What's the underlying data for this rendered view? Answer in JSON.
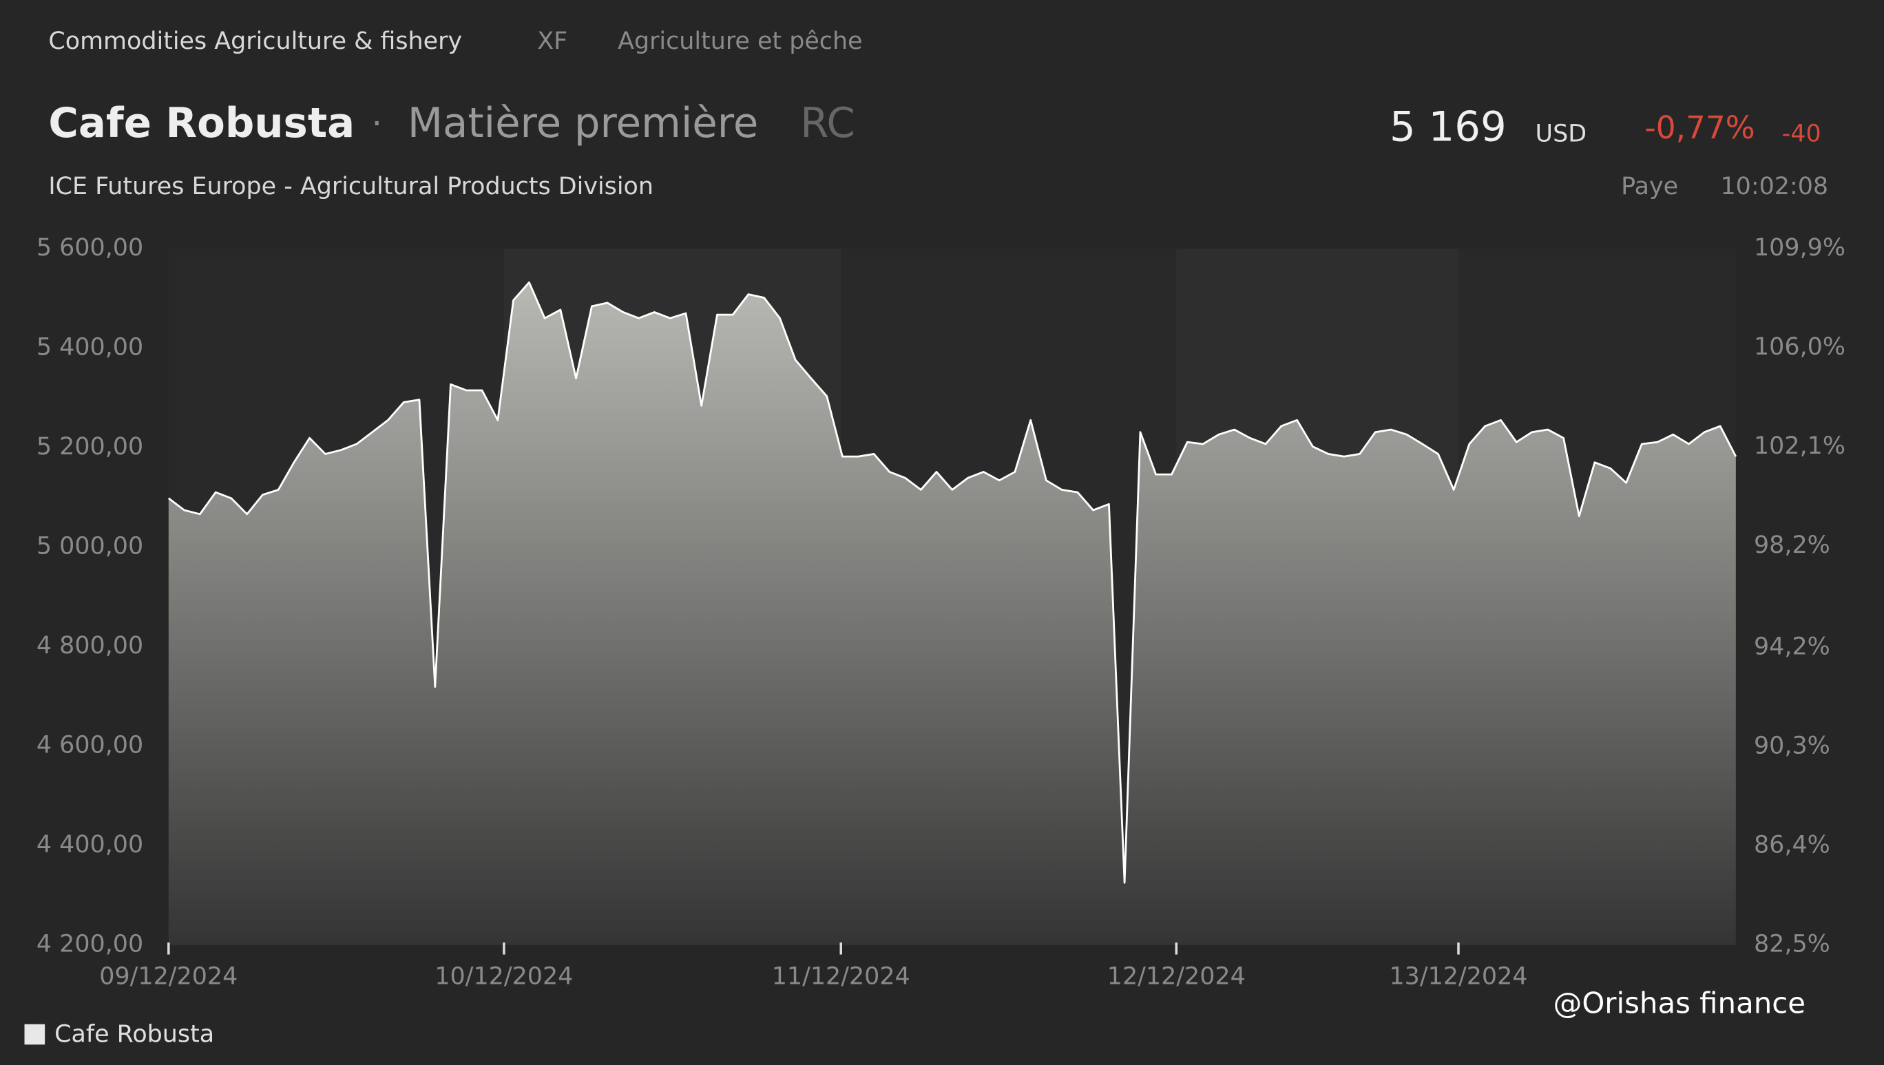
{
  "header": {
    "breadcrumb": [
      "Commodities Agriculture & fishery",
      "XF",
      "Agriculture et pêche"
    ],
    "name": "Cafe Robusta",
    "separator": "·",
    "kind": "Matière première",
    "code": "RC",
    "exchange": "ICE Futures Europe - Agricultural Products Division",
    "price": "5 169",
    "currency": "USD",
    "change_pct": "-0,77%",
    "change": "-40",
    "status": "Paye",
    "time": "10:02:08"
  },
  "watermark": "@Orishas finance",
  "chart_data": {
    "type": "area",
    "series": [
      {
        "name": "Cafe Robusta",
        "color": "#ffffff",
        "values": [
          5098,
          5074,
          5066,
          5110,
          5098,
          5066,
          5105,
          5115,
          5170,
          5219,
          5187,
          5195,
          5207,
          5231,
          5255,
          5291,
          5296,
          4719,
          5327,
          5315,
          5315,
          5255,
          5496,
          5532,
          5460,
          5477,
          5339,
          5484,
          5491,
          5472,
          5460,
          5472,
          5460,
          5470,
          5284,
          5467,
          5467,
          5508,
          5501,
          5460,
          5376,
          5339,
          5303,
          5182,
          5182,
          5187,
          5151,
          5139,
          5115,
          5151,
          5115,
          5139,
          5151,
          5134,
          5151,
          5255,
          5134,
          5115,
          5110,
          5074,
          5086,
          4325,
          5231,
          5146,
          5146,
          5211,
          5207,
          5226,
          5236,
          5219,
          5207,
          5243,
          5255,
          5202,
          5187,
          5182,
          5187,
          5231,
          5236,
          5226,
          5207,
          5187,
          5115,
          5207,
          5243,
          5255,
          5211,
          5231,
          5236,
          5219,
          5062,
          5170,
          5158,
          5129,
          5207,
          5211,
          5226,
          5207,
          5231,
          5243,
          5182
        ]
      }
    ],
    "xlim": [
      0,
      100
    ],
    "xticks": [
      {
        "value": 0,
        "label": "09/12/2024"
      },
      {
        "value": 21.4,
        "label": "10/12/2024"
      },
      {
        "value": 42.9,
        "label": "11/12/2024"
      },
      {
        "value": 64.3,
        "label": "12/12/2024"
      },
      {
        "value": 82.3,
        "label": "13/12/2024"
      }
    ],
    "ylim": [
      4200,
      5600
    ],
    "yticks": [
      {
        "value": 5600,
        "label": "5 600,00"
      },
      {
        "value": 5400,
        "label": "5 400,00"
      },
      {
        "value": 5200,
        "label": "5 200,00"
      },
      {
        "value": 5000,
        "label": "5 000,00"
      },
      {
        "value": 4800,
        "label": "4 800,00"
      },
      {
        "value": 4600,
        "label": "4 600,00"
      },
      {
        "value": 4400,
        "label": "4 400,00"
      },
      {
        "value": 4200,
        "label": "4 200,00"
      }
    ],
    "y2lim": [
      82.5,
      109.9
    ],
    "y2ticks": [
      {
        "value": 109.9,
        "label": "109,9%"
      },
      {
        "value": 106.0,
        "label": "106,0%"
      },
      {
        "value": 102.1,
        "label": "102,1%"
      },
      {
        "value": 98.2,
        "label": "98,2%"
      },
      {
        "value": 94.2,
        "label": "94,2%"
      },
      {
        "value": 90.3,
        "label": "90,3%"
      },
      {
        "value": 86.4,
        "label": "86,4%"
      },
      {
        "value": 82.5,
        "label": "82,5%"
      }
    ]
  }
}
